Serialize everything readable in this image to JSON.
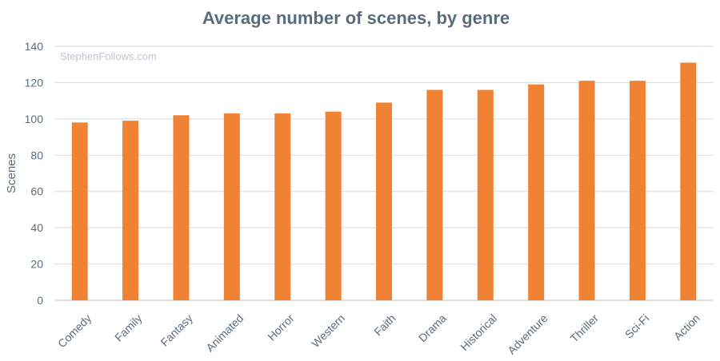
{
  "watermark": "StephenFollows.com",
  "colors": {
    "bar": "#ef8233",
    "grid": "#d9d9d9",
    "axis": "#bfbfbf",
    "text": "#5a6b7d"
  },
  "chart_data": {
    "type": "bar",
    "title": "Average number of scenes, by genre",
    "xlabel": "",
    "ylabel": "Scenes",
    "categories": [
      "Comedy",
      "Family",
      "Fantasy",
      "Animated",
      "Horror",
      "Western",
      "Faith",
      "Drama",
      "Historical",
      "Adventure",
      "Thriller",
      "Sci-Fi",
      "Action"
    ],
    "values": [
      98,
      99,
      102,
      103,
      103,
      104,
      109,
      116,
      116,
      119,
      121,
      121,
      131
    ],
    "ylim": [
      0,
      140
    ],
    "yticks": [
      0,
      20,
      40,
      60,
      80,
      100,
      120,
      140
    ],
    "grid": true,
    "legend": "none"
  }
}
